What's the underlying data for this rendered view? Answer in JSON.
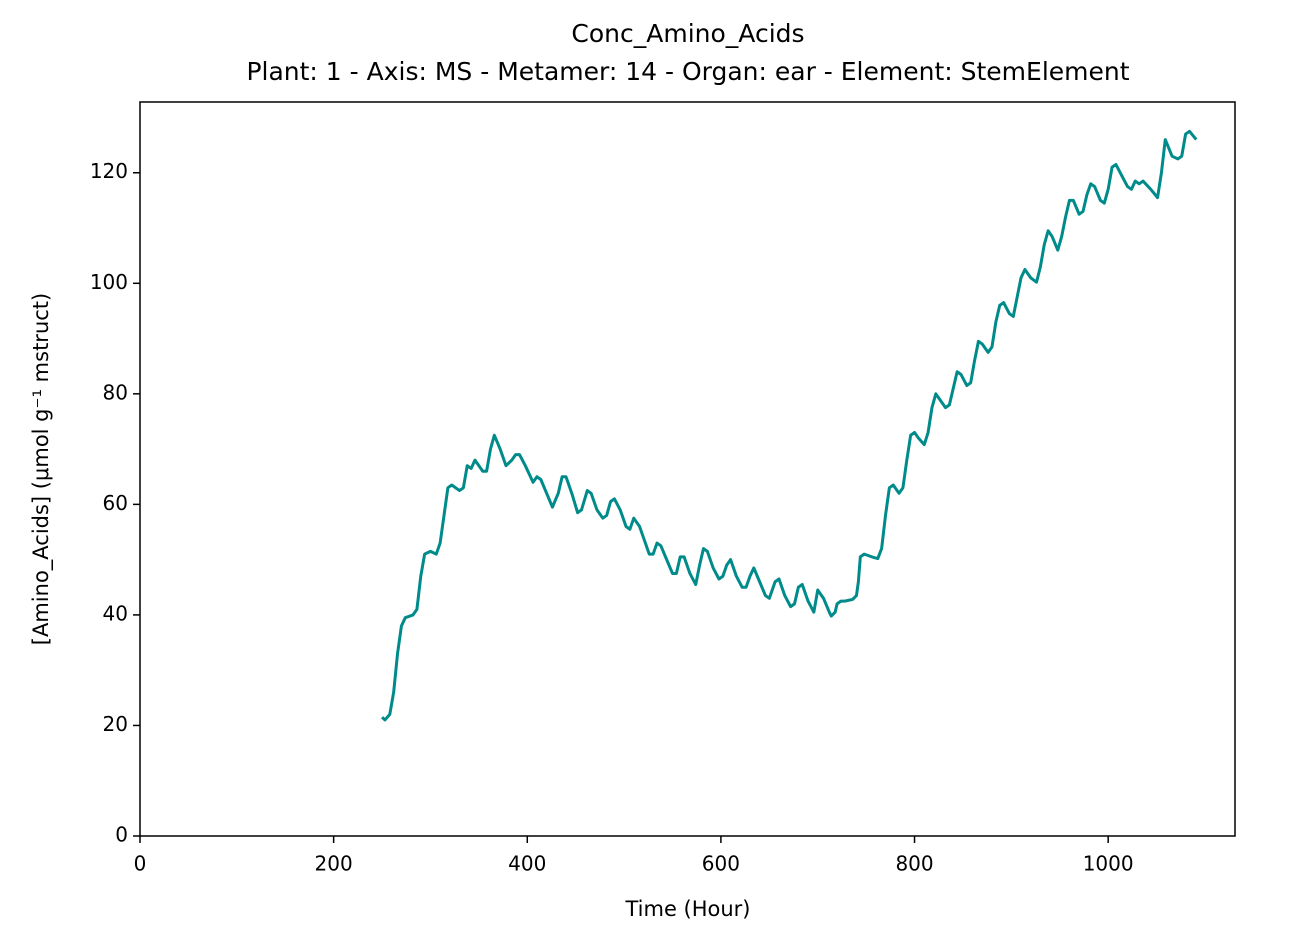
{
  "chart_data": {
    "type": "line",
    "title": "Conc_Amino_Acids",
    "subtitle": "Plant: 1 - Axis: MS - Metamer: 14 - Organ: ear - Element: StemElement",
    "x_label": "Time (Hour)",
    "y_label": "[Amino_Acids] (μmol g⁻¹ mstruct)",
    "xlim": [
      0,
      1131
    ],
    "ylim": [
      0,
      132.8
    ],
    "xticks": [
      0,
      200,
      400,
      600,
      800,
      1000
    ],
    "yticks": [
      0,
      20,
      40,
      60,
      80,
      100,
      120
    ],
    "grid": false,
    "series": [
      {
        "color": "#008b8b",
        "x": [
          250,
          253,
          258,
          262,
          266,
          270,
          274,
          282,
          286,
          290,
          294,
          300,
          306,
          310,
          314,
          318,
          322,
          330,
          334,
          338,
          342,
          346,
          354,
          358,
          362,
          366,
          372,
          378,
          384,
          388,
          392,
          398,
          402,
          406,
          410,
          414,
          420,
          426,
          432,
          436,
          440,
          446,
          452,
          456,
          462,
          466,
          472,
          478,
          482,
          486,
          490,
          496,
          502,
          506,
          510,
          516,
          522,
          526,
          530,
          534,
          538,
          544,
          550,
          554,
          558,
          562,
          568,
          574,
          578,
          582,
          586,
          592,
          598,
          602,
          606,
          610,
          616,
          622,
          626,
          630,
          634,
          640,
          646,
          650,
          656,
          660,
          666,
          672,
          676,
          680,
          684,
          690,
          696,
          700,
          706,
          712,
          714,
          718,
          720,
          724,
          728,
          736,
          740,
          742,
          744,
          748,
          756,
          762,
          766,
          770,
          774,
          778,
          784,
          788,
          792,
          796,
          800,
          804,
          810,
          814,
          818,
          822,
          826,
          832,
          836,
          840,
          844,
          848,
          854,
          858,
          862,
          866,
          870,
          876,
          880,
          884,
          888,
          892,
          898,
          902,
          906,
          910,
          914,
          920,
          926,
          930,
          934,
          938,
          942,
          948,
          952,
          956,
          960,
          964,
          970,
          974,
          978,
          982,
          986,
          992,
          996,
          1000,
          1004,
          1008,
          1014,
          1020,
          1024,
          1028,
          1032,
          1036,
          1044,
          1051,
          1055,
          1059,
          1066,
          1072,
          1076,
          1080,
          1084,
          1091
        ],
        "values": [
          21.5,
          21,
          22,
          26,
          33,
          38,
          39.5,
          40,
          41,
          47,
          51,
          51.5,
          51,
          53,
          58,
          63,
          63.5,
          62.5,
          63,
          67,
          66.5,
          68,
          66,
          66,
          70,
          72.5,
          70,
          67,
          68,
          69,
          69,
          67,
          65.5,
          64,
          65,
          64.5,
          62,
          59.5,
          62,
          65,
          65,
          62,
          58.5,
          59,
          62.5,
          62,
          59,
          57.5,
          58,
          60.5,
          61,
          59,
          56,
          55.5,
          57.5,
          56,
          53,
          51,
          51,
          53,
          52.5,
          50,
          47.5,
          47.5,
          50.5,
          50.5,
          47.5,
          45.5,
          49,
          52,
          51.5,
          48.5,
          46.5,
          47,
          49,
          50,
          47,
          45,
          45,
          47,
          48.5,
          46,
          43.5,
          43,
          46,
          46.5,
          43.5,
          41.5,
          42,
          45,
          45.5,
          42.5,
          40.5,
          44.5,
          43,
          40.5,
          39.8,
          40.5,
          42,
          42.5,
          42.5,
          42.8,
          43.5,
          46,
          50.5,
          51,
          50.5,
          50.2,
          52,
          58,
          63,
          63.5,
          62,
          63,
          68,
          72.5,
          73,
          72,
          70.8,
          73,
          77.5,
          80,
          79,
          77.5,
          78,
          81,
          84,
          83.5,
          81.5,
          82,
          86,
          89.5,
          89,
          87.5,
          88.5,
          93,
          96,
          96.5,
          94.5,
          94,
          97.5,
          101,
          102.5,
          101,
          100.2,
          103,
          107,
          109.5,
          108.5,
          106,
          108.5,
          112,
          115,
          115,
          112.5,
          113,
          116,
          118,
          117.5,
          115,
          114.5,
          117,
          121,
          121.5,
          119.5,
          117.5,
          117,
          118.5,
          118,
          118.5,
          117,
          115.5,
          120,
          126,
          123,
          122.5,
          123,
          127,
          127.5,
          126
        ]
      }
    ]
  }
}
